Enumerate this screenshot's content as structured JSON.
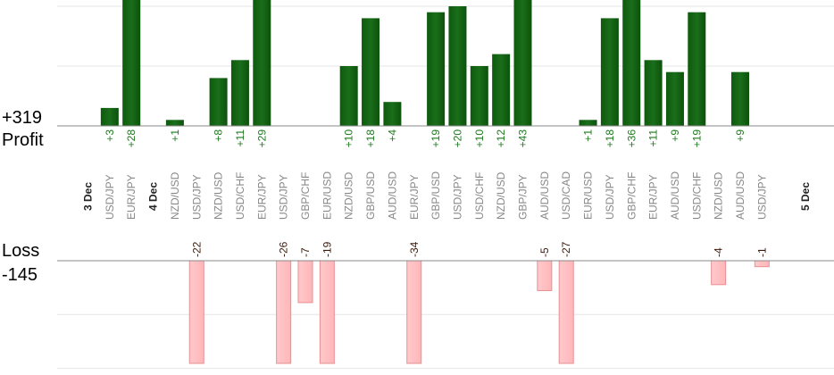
{
  "chart_data": {
    "type": "bar",
    "profit_total": "+319",
    "profit_label": "Profit",
    "loss_label": "Loss",
    "loss_total": "-145",
    "colors": {
      "profit_bar": "#1a6e1a",
      "profit_text": "#1e7a1e",
      "loss_bar": "#ffb6b9",
      "loss_border": "#e88f93",
      "loss_text": "#3b1a0a",
      "grid": "#e6e6e6",
      "axis": "#888888"
    },
    "days": [
      {
        "label": "3 Dec",
        "before": 0
      },
      {
        "label": "4 Dec",
        "before": 2
      },
      {
        "label": "5 Dec",
        "before": 31
      }
    ],
    "categories": [
      "USD/JPY",
      "EUR/JPY",
      "NZD/USD",
      "USD/JPY",
      "NZD/USD",
      "USD/CHF",
      "EUR/JPY",
      "USD/JPY",
      "GBP/CHF",
      "EUR/USD",
      "NZD/USD",
      "GBP/USD",
      "AUD/USD",
      "EUR/JPY",
      "GBP/USD",
      "USD/JPY",
      "USD/CHF",
      "NZD/USD",
      "GBP/JPY",
      "AUD/USD",
      "USD/CAD",
      "EUR/USD",
      "USD/JPY",
      "GBP/CHF",
      "EUR/JPY",
      "AUD/USD",
      "USD/CHF",
      "NZD/USD",
      "AUD/USD",
      "USD/JPY"
    ],
    "series": [
      {
        "name": "Profit",
        "labels": [
          "+3",
          "+28",
          "+1",
          "",
          "+8",
          "+11",
          "+29",
          "",
          "",
          "",
          "+10",
          "+18",
          "+4",
          "",
          "+19",
          "+20",
          "+10",
          "+12",
          "+43",
          "",
          "",
          "+1",
          "+18",
          "+36",
          "+11",
          "+9",
          "+19",
          "",
          "+9",
          ""
        ],
        "values": [
          3,
          28,
          1,
          0,
          8,
          11,
          29,
          0,
          0,
          0,
          10,
          18,
          4,
          0,
          19,
          20,
          10,
          12,
          43,
          0,
          0,
          1,
          18,
          36,
          11,
          9,
          19,
          0,
          9,
          0
        ]
      },
      {
        "name": "Loss",
        "labels": [
          "",
          "",
          "",
          "-22",
          "",
          "",
          "",
          "-26",
          "-7",
          "-19",
          "",
          "",
          "",
          "-34",
          "",
          "",
          "",
          "",
          "",
          "-5",
          "-27",
          "",
          "",
          "",
          "",
          "",
          "",
          "-4",
          "",
          "-1"
        ],
        "values": [
          0,
          0,
          0,
          -22,
          0,
          0,
          0,
          -26,
          -7,
          -19,
          0,
          0,
          0,
          -34,
          0,
          0,
          0,
          0,
          0,
          -5,
          -27,
          0,
          0,
          0,
          0,
          0,
          0,
          -4,
          0,
          -1
        ]
      }
    ],
    "ylim_profit": [
      0,
      20
    ],
    "ylim_loss": [
      -18,
      0
    ],
    "grid": true
  }
}
